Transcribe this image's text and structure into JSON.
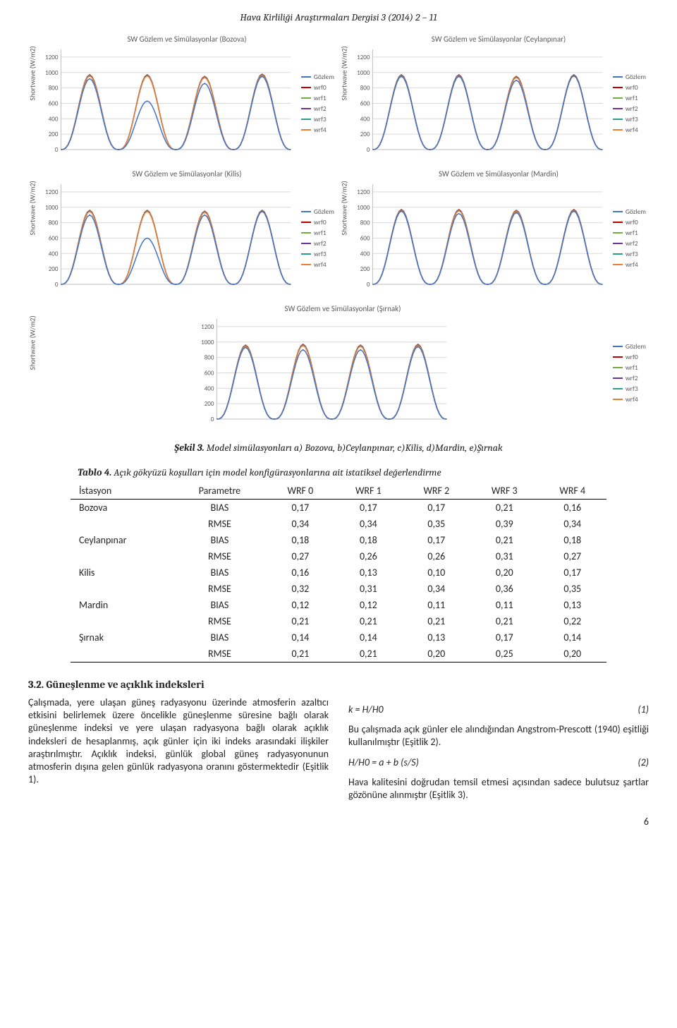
{
  "header": "Hava Kirliliği Araştırmaları Dergisi 3 (2014) 2 – 11",
  "series_colors": {
    "Gözlem": "#4472c4",
    "wrf0": "#c00000",
    "wrf1": "#70ad47",
    "wrf2": "#7030a0",
    "wrf3": "#2e9999",
    "wrf4": "#ed7d31"
  },
  "legend_labels": [
    "Gözlem",
    "wrf0",
    "wrf1",
    "wrf2",
    "wrf3",
    "wrf4"
  ],
  "chart_common": {
    "ylabel": "Shortwave (W/m2)",
    "ylim": [
      0,
      1300
    ],
    "ytick_step": 200,
    "xlim": [
      0,
      96
    ],
    "title_fontsize": 11,
    "label_fontsize": 10,
    "grid_color": "#d9d9d9",
    "axis_color": "#bfbfbf",
    "background": "#ffffff",
    "line_width": 1.5
  },
  "panels": [
    {
      "key": "bozova",
      "title": "SW Gözlem ve Simülasyonlar (Bozova)",
      "gozlem_scale": [
        0,
        0.92,
        0,
        0,
        0.63,
        0,
        0,
        0.86,
        0,
        0,
        0.95,
        0
      ],
      "sim_scale": [
        0,
        0.97,
        0,
        0,
        0.97,
        0,
        0,
        0.95,
        0,
        0,
        0.98,
        0
      ]
    },
    {
      "key": "ceylanpinar",
      "title": "SW Gözlem ve Simülasyonlar (Ceylanpınar)",
      "gozlem_scale": [
        0,
        0.95,
        0,
        0,
        0.95,
        0,
        0,
        0.9,
        0,
        0,
        0.96,
        0
      ],
      "sim_scale": [
        0,
        0.97,
        0,
        0,
        0.97,
        0,
        0,
        0.95,
        0,
        0,
        0.97,
        0
      ]
    },
    {
      "key": "kilis",
      "title": "SW Gözlem ve Simülasyonlar (Kilis)",
      "gozlem_scale": [
        0,
        0.9,
        0,
        0,
        0.6,
        0,
        0,
        0.9,
        0,
        0,
        0.95,
        0
      ],
      "sim_scale": [
        0,
        0.96,
        0,
        0,
        0.96,
        0,
        0,
        0.95,
        0,
        0,
        0.96,
        0
      ]
    },
    {
      "key": "mardin",
      "title": "SW Gözlem ve Simülasyonlar (Mardin)",
      "gozlem_scale": [
        0,
        0.95,
        0,
        0,
        0.92,
        0,
        0,
        0.93,
        0,
        0,
        0.95,
        0
      ],
      "sim_scale": [
        0,
        0.97,
        0,
        0,
        0.97,
        0,
        0,
        0.96,
        0,
        0,
        0.97,
        0
      ]
    },
    {
      "key": "sirnak",
      "title": "SW Gözlem ve Simülasyonlar (Şırnak)",
      "span": 2,
      "gozlem_scale": [
        0,
        0.93,
        0,
        0,
        0.9,
        0,
        0,
        0.9,
        0,
        0,
        0.94,
        0
      ],
      "sim_scale": [
        0,
        0.96,
        0,
        0,
        0.97,
        0,
        0,
        0.96,
        0,
        0,
        0.97,
        0
      ]
    }
  ],
  "figure_caption": {
    "label": "Şekil 3.",
    "text": " Model simülasyonları a) Bozova, b)Ceylanpınar, c)Kilis, d)Mardin, e)Şırnak"
  },
  "table": {
    "caption_label": "Tablo 4.",
    "caption_text": " Açık gökyüzü koşulları için model konfigürasyonlarına ait istatiksel değerlendirme",
    "columns": [
      "İstasyon",
      "Parametre",
      "WRF 0",
      "WRF 1",
      "WRF 2",
      "WRF 3",
      "WRF 4"
    ],
    "rows": [
      [
        "Bozova",
        "BIAS",
        "0,17",
        "0,17",
        "0,17",
        "0,21",
        "0,16"
      ],
      [
        "",
        "RMSE",
        "0,34",
        "0,34",
        "0,35",
        "0,39",
        "0,34"
      ],
      [
        "Ceylanpınar",
        "BIAS",
        "0,18",
        "0,18",
        "0,17",
        "0,21",
        "0,18"
      ],
      [
        "",
        "RMSE",
        "0,27",
        "0,26",
        "0,26",
        "0,31",
        "0,27"
      ],
      [
        "Kilis",
        "BIAS",
        "0,16",
        "0,13",
        "0,10",
        "0,20",
        "0,17"
      ],
      [
        "",
        "RMSE",
        "0,32",
        "0,31",
        "0,34",
        "0,36",
        "0,35"
      ],
      [
        "Mardin",
        "BIAS",
        "0,12",
        "0,12",
        "0,11",
        "0,11",
        "0,13"
      ],
      [
        "",
        "RMSE",
        "0,21",
        "0,21",
        "0,21",
        "0,21",
        "0,22"
      ],
      [
        "Şırnak",
        "BIAS",
        "0,14",
        "0,14",
        "0,13",
        "0,17",
        "0,14"
      ],
      [
        "",
        "RMSE",
        "0,21",
        "0,21",
        "0,20",
        "0,25",
        "0,20"
      ]
    ]
  },
  "section": {
    "title": "3.2. Güneşlenme ve açıklık indeksleri",
    "left": "Çalışmada, yere ulaşan güneş radyasyonu üzerinde atmosferin azaltıcı etkisini belirlemek üzere öncelikle güneşlenme süresine bağlı olarak güneşlenme indeksi ve yere ulaşan radyasyona bağlı olarak açıklık indeksleri de hesaplanmış, açık günler için iki indeks arasındaki ilişkiler araştırılmıştır. Açıklık indeksi, günlük global güneş radyasyonunun atmosferin dışına gelen günlük radyasyona oranını göstermektedir (Eşitlik 1).",
    "eq1_lhs": "k = H/H0",
    "eq1_num": "(1)",
    "right1": "Bu çalışmada açık günler ele alındığından Angstrom-Prescott (1940) eşitliği kullanılmıştır (Eşitlik 2).",
    "eq2_lhs": "H/H0 = a + b (s/S)",
    "eq2_num": "(2)",
    "right2": "Hava kalitesini doğrudan temsil etmesi açısından sadece bulutsuz şartlar gözönüne alınmıştır (Eşitlik 3)."
  },
  "page_number": "6"
}
